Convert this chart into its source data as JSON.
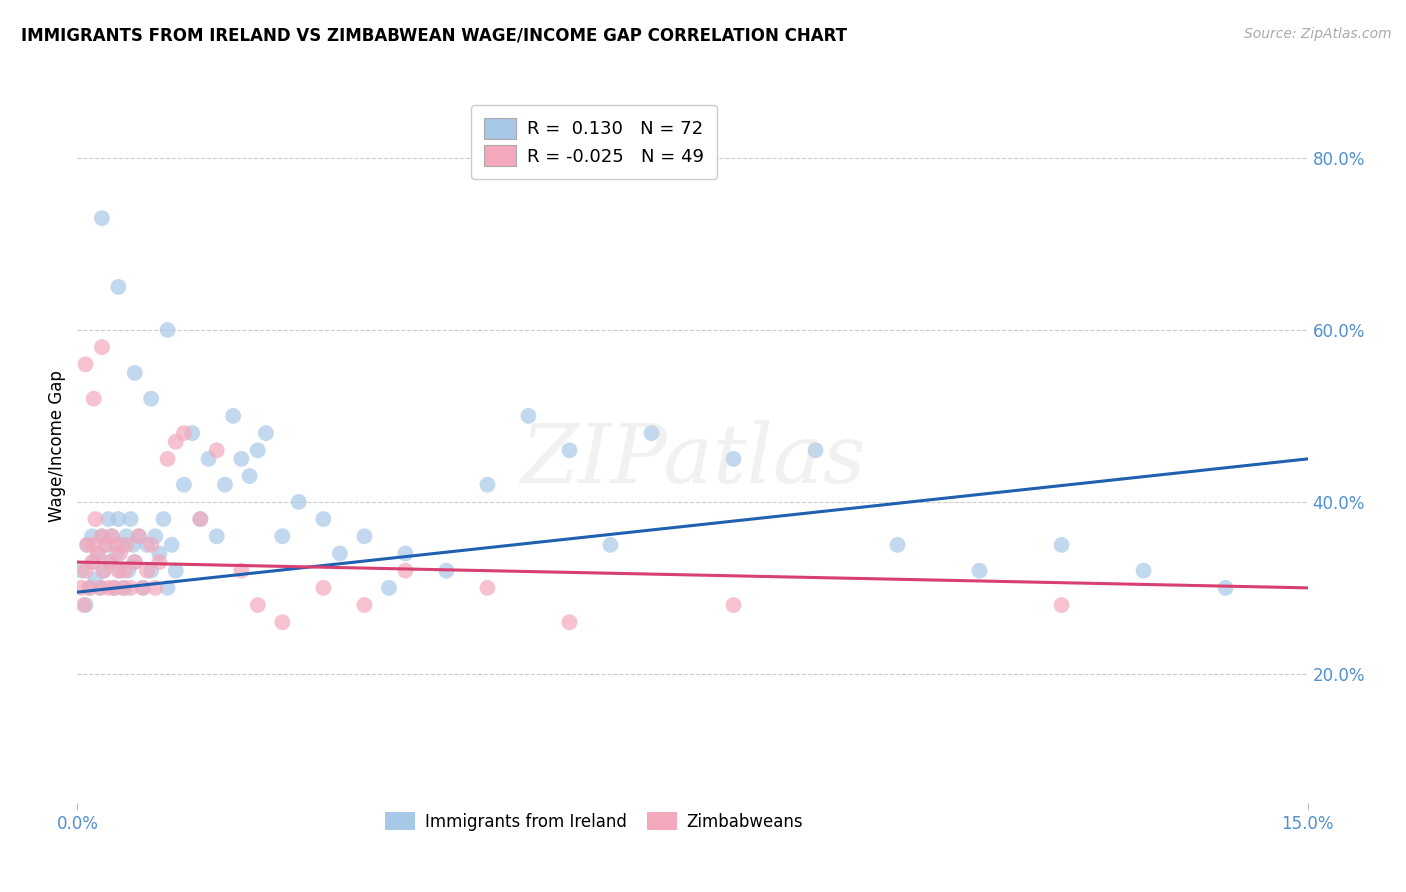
{
  "title": "IMMIGRANTS FROM IRELAND VS ZIMBABWEAN WAGE/INCOME GAP CORRELATION CHART",
  "source": "Source: ZipAtlas.com",
  "ylabel": "Wage/Income Gap",
  "right_ytick_vals": [
    20.0,
    40.0,
    60.0,
    80.0
  ],
  "right_ytick_labels": [
    "20.0%",
    "40.0%",
    "60.0%",
    "80.0%"
  ],
  "legend_r1": "R =  0.130",
  "legend_n1": "N = 72",
  "legend_r2": "R = -0.025",
  "legend_n2": "N = 49",
  "color_blue": "#a8c8e8",
  "color_pink": "#f4a8bc",
  "color_line_blue": "#2060b0",
  "color_line_pink": "#d84070",
  "color_right_axis": "#5090d0",
  "color_xtick": "#5090d0",
  "watermark": "ZIPatlas",
  "blue_x": [
    0.05,
    0.1,
    0.12,
    0.15,
    0.18,
    0.2,
    0.22,
    0.25,
    0.28,
    0.3,
    0.32,
    0.35,
    0.38,
    0.4,
    0.42,
    0.45,
    0.48,
    0.5,
    0.52,
    0.55,
    0.58,
    0.6,
    0.62,
    0.65,
    0.68,
    0.7,
    0.75,
    0.8,
    0.85,
    0.9,
    0.95,
    1.0,
    1.05,
    1.1,
    1.15,
    1.2,
    1.3,
    1.4,
    1.5,
    1.6,
    1.7,
    1.8,
    1.9,
    2.0,
    2.1,
    2.2,
    2.3,
    2.5,
    2.7,
    3.0,
    3.2,
    3.5,
    3.8,
    4.0,
    4.5,
    5.0,
    5.5,
    6.0,
    6.5,
    7.0,
    8.0,
    9.0,
    10.0,
    11.0,
    12.0,
    13.0,
    14.0,
    0.3,
    0.5,
    0.7,
    0.9,
    1.1
  ],
  "blue_y": [
    32,
    28,
    35,
    30,
    36,
    33,
    31,
    34,
    30,
    36,
    32,
    35,
    38,
    33,
    36,
    30,
    34,
    38,
    32,
    35,
    30,
    36,
    32,
    38,
    35,
    33,
    36,
    30,
    35,
    32,
    36,
    34,
    38,
    30,
    35,
    32,
    42,
    48,
    38,
    45,
    36,
    42,
    50,
    45,
    43,
    46,
    48,
    36,
    40,
    38,
    34,
    36,
    30,
    34,
    32,
    42,
    50,
    46,
    35,
    48,
    45,
    46,
    35,
    32,
    35,
    32,
    30,
    73,
    65,
    55,
    52,
    60
  ],
  "pink_x": [
    0.05,
    0.08,
    0.1,
    0.12,
    0.15,
    0.18,
    0.2,
    0.22,
    0.25,
    0.28,
    0.3,
    0.32,
    0.35,
    0.38,
    0.4,
    0.42,
    0.45,
    0.48,
    0.5,
    0.52,
    0.55,
    0.58,
    0.6,
    0.65,
    0.7,
    0.75,
    0.8,
    0.85,
    0.9,
    0.95,
    1.0,
    1.1,
    1.2,
    1.3,
    1.5,
    1.7,
    2.0,
    2.2,
    2.5,
    3.0,
    3.5,
    4.0,
    5.0,
    6.0,
    8.0,
    12.0,
    0.1,
    0.2,
    0.3
  ],
  "pink_y": [
    30,
    28,
    32,
    35,
    30,
    33,
    35,
    38,
    34,
    30,
    36,
    32,
    35,
    30,
    33,
    36,
    30,
    35,
    32,
    34,
    30,
    32,
    35,
    30,
    33,
    36,
    30,
    32,
    35,
    30,
    33,
    45,
    47,
    48,
    38,
    46,
    32,
    28,
    26,
    30,
    28,
    32,
    30,
    26,
    28,
    28,
    56,
    52,
    58
  ],
  "xmin": 0.0,
  "xmax": 15.0,
  "ymin": 5,
  "ymax": 88,
  "blue_trend_x0": 0.0,
  "blue_trend_y0": 29.5,
  "blue_trend_x1": 15.0,
  "blue_trend_y1": 45.0,
  "pink_trend_x0": 0.0,
  "pink_trend_y0": 33.0,
  "pink_trend_x1": 15.0,
  "pink_trend_y1": 30.0
}
